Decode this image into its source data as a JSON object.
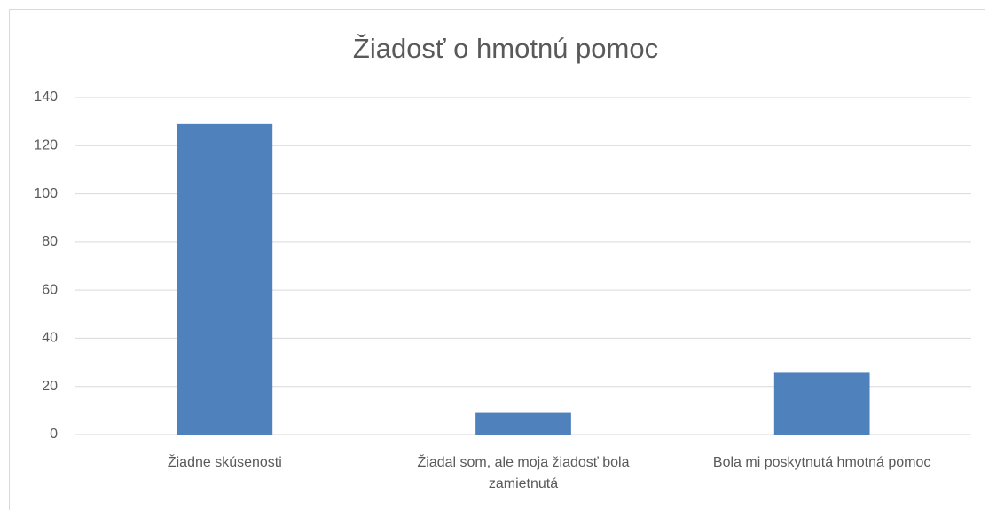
{
  "chart_data": {
    "type": "bar",
    "title": "Žiadosť o hmotnú pomoc",
    "categories": [
      "Žiadne skúsenosti",
      "Žiadal som, ale moja žiadosť bola zamietnutá",
      "Bola mi poskytnutá hmotná pomoc"
    ],
    "values": [
      129,
      9,
      26
    ],
    "color": "#4f81bd",
    "ylim": [
      0,
      140
    ],
    "yticks": [
      0,
      20,
      40,
      60,
      80,
      100,
      120,
      140
    ],
    "grid": true
  }
}
